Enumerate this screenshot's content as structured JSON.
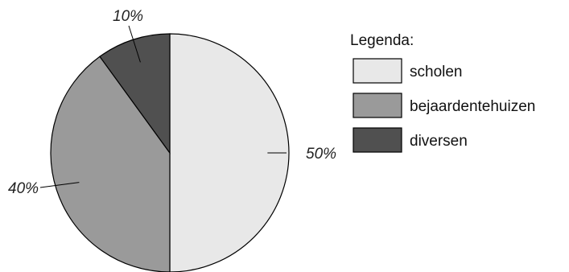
{
  "chart_data": {
    "type": "pie",
    "slices": [
      {
        "label": "scholen",
        "value": 50,
        "value_label": "50%",
        "color": "#e8e8e8"
      },
      {
        "label": "bejaardentehuizen",
        "value": 40,
        "value_label": "40%",
        "color": "#9a9a9a"
      },
      {
        "label": "diversen",
        "value": 10,
        "value_label": "10%",
        "color": "#505050"
      }
    ],
    "legend": {
      "title": "Legenda:",
      "placement": "right"
    },
    "start_angle_deg": 0,
    "direction": "clockwise"
  }
}
